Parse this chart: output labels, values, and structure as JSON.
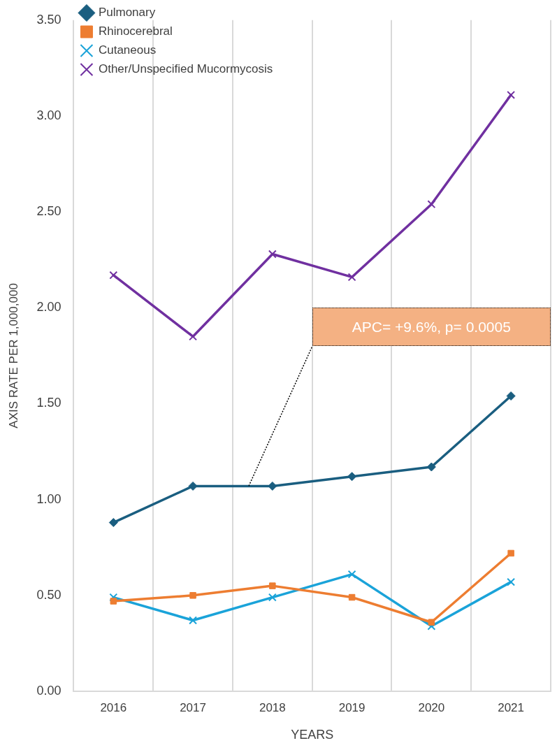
{
  "chart_data": {
    "type": "line",
    "xlabel": "YEARS",
    "ylabel": "AXIS RATE PER 1,000,000",
    "categories": [
      "2016",
      "2017",
      "2018",
      "2019",
      "2020",
      "2021"
    ],
    "series": [
      {
        "name": "Pulmonary",
        "color": "#1a5e80",
        "marker": "diamond",
        "values": [
          0.88,
          1.07,
          1.07,
          1.12,
          1.17,
          1.54
        ]
      },
      {
        "name": "Rhinocerebral",
        "color": "#ed7d31",
        "marker": "square",
        "values": [
          0.47,
          0.5,
          0.55,
          0.49,
          0.36,
          0.72
        ]
      },
      {
        "name": "Cutaneous",
        "color": "#1aa3d9",
        "marker": "cross",
        "values": [
          0.49,
          0.37,
          0.49,
          0.61,
          0.34,
          0.57
        ]
      },
      {
        "name": "Other/Unspecified Mucormycosis",
        "color": "#7030a0",
        "marker": "cross",
        "values": [
          2.17,
          1.85,
          2.28,
          2.16,
          2.54,
          3.11
        ]
      }
    ],
    "ylim": [
      0,
      3.5
    ],
    "yticks": [
      {
        "value": 0,
        "label": "0.00"
      },
      {
        "value": 0.5,
        "label": "0.50"
      },
      {
        "value": 1,
        "label": "1.00"
      },
      {
        "value": 1.5,
        "label": "1.50"
      },
      {
        "value": 2,
        "label": "2.00"
      },
      {
        "value": 2.5,
        "label": "2.50"
      },
      {
        "value": 3,
        "label": "3.00"
      },
      {
        "value": 3.5,
        "label": "3.50"
      }
    ],
    "grid": "x",
    "legend": "top",
    "line_style": "solid",
    "annotations": [
      "APC= +9.6%, p= 0.0005"
    ]
  }
}
